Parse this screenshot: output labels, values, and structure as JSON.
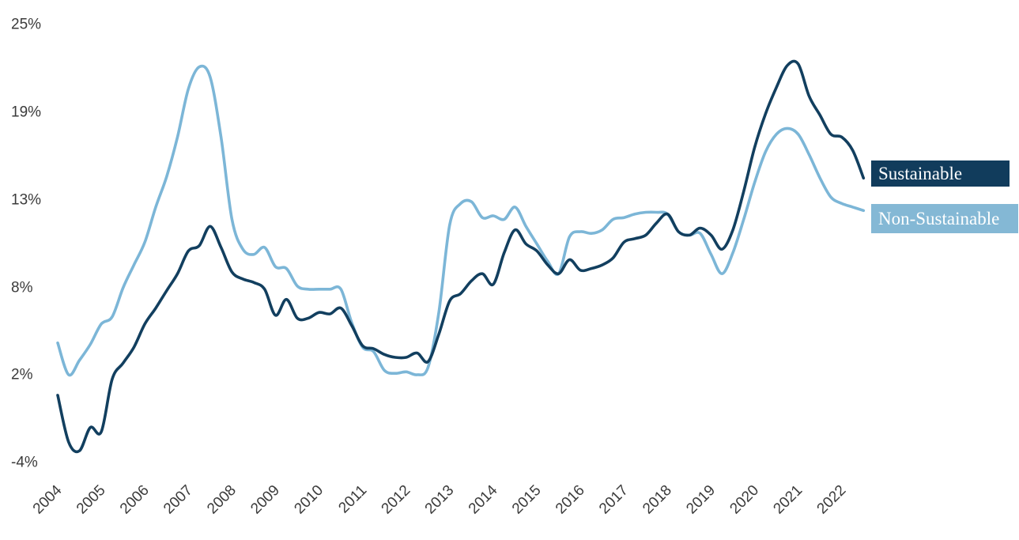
{
  "chart_data": {
    "type": "line",
    "title": "",
    "xlabel": "",
    "ylabel": "",
    "grid": false,
    "ylim": [
      -4,
      25
    ],
    "y_tick_labels": [
      "25%",
      "19%",
      "13%",
      "8%",
      "2%",
      "-4%"
    ],
    "y_tick_values": [
      25,
      19,
      13,
      8,
      2,
      -4
    ],
    "x_tick_labels": [
      "2004",
      "2005",
      "2006",
      "2007",
      "2008",
      "2009",
      "2010",
      "2011",
      "2012",
      "2013",
      "2014",
      "2015",
      "2016",
      "2017",
      "2018",
      "2019",
      "2020",
      "2021",
      "2022"
    ],
    "x": [
      2004,
      2004.25,
      2004.5,
      2004.75,
      2005,
      2005.25,
      2005.5,
      2005.75,
      2006,
      2006.25,
      2006.5,
      2006.75,
      2007,
      2007.25,
      2007.5,
      2007.75,
      2008,
      2008.25,
      2008.5,
      2008.75,
      2009,
      2009.25,
      2009.5,
      2009.75,
      2010,
      2010.25,
      2010.5,
      2010.75,
      2011,
      2011.25,
      2011.5,
      2011.75,
      2012,
      2012.25,
      2012.5,
      2012.75,
      2013,
      2013.25,
      2013.5,
      2013.75,
      2014,
      2014.25,
      2014.5,
      2014.75,
      2015,
      2015.25,
      2015.5,
      2015.75,
      2016,
      2016.25,
      2016.5,
      2016.75,
      2017,
      2017.25,
      2017.5,
      2017.75,
      2018,
      2018.25,
      2018.5,
      2018.75,
      2019,
      2019.25,
      2019.5,
      2019.75,
      2020,
      2020.25,
      2020.5,
      2020.75,
      2021,
      2021.25,
      2021.5,
      2021.75,
      2022,
      2022.25,
      2022.5
    ],
    "series": [
      {
        "name": "Sustainable",
        "color": "#123f5f",
        "values": [
          0.6,
          -2.6,
          -3.2,
          -1.6,
          -1.9,
          1.7,
          2.8,
          3.9,
          5.5,
          6.6,
          7.8,
          8.8,
          10.1,
          10.4,
          11.5,
          10.3,
          8.9,
          8.5,
          8.3,
          7.9,
          6.1,
          7.2,
          5.9,
          5.9,
          6.3,
          6.2,
          6.6,
          5.4,
          4.0,
          3.8,
          3.4,
          3.2,
          3.2,
          3.5,
          2.9,
          4.8,
          7.1,
          7.6,
          8.4,
          8.8,
          8.2,
          10.0,
          11.3,
          10.5,
          10.1,
          9.3,
          8.8,
          9.6,
          9.0,
          9.1,
          9.3,
          9.7,
          10.6,
          10.8,
          11.0,
          11.7,
          12.2,
          11.2,
          11.0,
          11.4,
          11.0,
          10.2,
          11.3,
          13.6,
          16.6,
          18.9,
          20.7,
          22.2,
          22.3,
          20.1,
          18.8,
          17.5,
          17.3,
          16.4,
          14.5
        ]
      },
      {
        "name": "Non-Sustainable",
        "color": "#7cb6d7",
        "values": [
          4.2,
          2.0,
          3.0,
          4.1,
          5.5,
          6.0,
          8.0,
          9.3,
          10.6,
          12.6,
          14.6,
          17.3,
          20.6,
          22.1,
          21.4,
          17.3,
          11.9,
          10.2,
          9.9,
          10.3,
          9.2,
          9.1,
          8.1,
          7.9,
          7.9,
          7.9,
          7.9,
          5.6,
          3.9,
          3.6,
          2.3,
          2.1,
          2.2,
          2.0,
          2.5,
          6.3,
          11.6,
          12.8,
          12.9,
          12.0,
          12.1,
          11.9,
          12.6,
          11.5,
          10.5,
          9.5,
          8.8,
          10.9,
          11.2,
          11.1,
          11.3,
          11.9,
          12.0,
          12.2,
          12.3,
          12.3,
          12.2,
          11.2,
          11.0,
          11.1,
          9.9,
          8.8,
          10.0,
          11.9,
          14.2,
          16.3,
          17.5,
          17.9,
          17.5,
          16.1,
          14.5,
          13.2,
          12.8,
          12.6,
          12.4
        ]
      }
    ],
    "legend_position": "right-of-line-ends"
  },
  "legend": {
    "items": [
      {
        "label": "Sustainable",
        "bg_color": "#113c5c",
        "text_color": "#ffffff"
      },
      {
        "label": "Non-Sustainable",
        "bg_color": "#84b8d5",
        "text_color": "#ffffff"
      }
    ]
  },
  "axes": {
    "tick_color": "#3b3b3b"
  }
}
